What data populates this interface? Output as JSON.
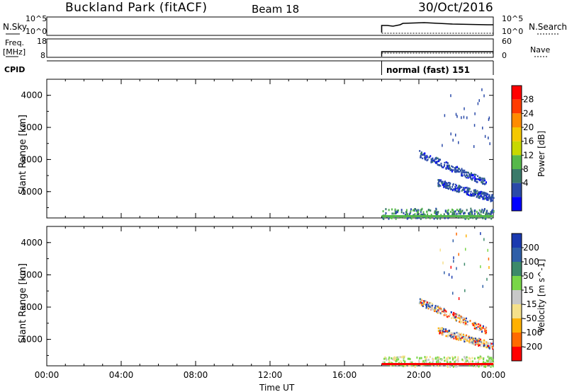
{
  "header": {
    "title": "Buckland Park (fitACF)",
    "beam": "Beam 18",
    "date": "30/Oct/2016"
  },
  "nsky_panel": {
    "left_label": "N.Sky",
    "left_ticks": [
      "10^5",
      "10^0"
    ],
    "right_label": "N.Search",
    "right_ticks": [
      "10^5",
      "10^0"
    ]
  },
  "freq_panel": {
    "left_label_1": "Freq.",
    "left_label_2": "[MHz]",
    "left_ticks": [
      "18",
      "8"
    ],
    "right_label": "Nave",
    "right_ticks": [
      "60",
      "0"
    ]
  },
  "cpid": {
    "label": "CPID",
    "mode_text": "normal (fast) 151"
  },
  "power_panel": {
    "ylabel": "Slant Range [km]",
    "yticks": [
      "4000",
      "3000",
      "2000",
      "1000"
    ],
    "colorbar_label": "Power [dB]",
    "colorbar_ticks": [
      "28",
      "24",
      "20",
      "16",
      "12",
      "8",
      "4"
    ],
    "colors": [
      "#ff0000",
      "#ff3c00",
      "#ff8c00",
      "#f5c800",
      "#c8d800",
      "#56b84a",
      "#3a7a6a",
      "#2a4aa8",
      "#0000ff"
    ]
  },
  "velocity_panel": {
    "ylabel": "Slant Range [km]",
    "yticks": [
      "4000",
      "3000",
      "2000",
      "1000"
    ],
    "colorbar_label": "Velocity [m s^-1]",
    "colorbar_ticks": [
      "200",
      "100",
      "50",
      "15",
      "-15",
      "-50",
      "-100",
      "-200"
    ],
    "colors": [
      "#1a3ab0",
      "#2f5fa8",
      "#3c8a6a",
      "#79d648",
      "#c8c8c8",
      "#f5e08a",
      "#ffb000",
      "#ff6a00",
      "#ff0000"
    ]
  },
  "x_axis": {
    "ticks": [
      "00:00",
      "04:00",
      "08:00",
      "12:00",
      "16:00",
      "20:00",
      "00:00"
    ],
    "label": "Time UT"
  },
  "chart_data": {
    "type": "heatmap",
    "x_range_hours": [
      0,
      24
    ],
    "y_range_km": [
      180,
      4500
    ],
    "data_start_hour": 18.0,
    "power_bands": [
      {
        "name": "near-range band",
        "t_start": 18.0,
        "t_end": 24.0,
        "range_km": [
          180,
          500
        ]
      },
      {
        "name": "descending echo 1",
        "t_start": 20.0,
        "t_end": 23.6,
        "range_start_km": 2200,
        "range_end_km": 1300
      },
      {
        "name": "descending echo 2",
        "t_start": 21.0,
        "t_end": 24.0,
        "range_start_km": 1300,
        "range_end_km": 800
      }
    ],
    "nsky_level_start_hour": 18.0,
    "nave_level_start_hour": 18.0
  }
}
